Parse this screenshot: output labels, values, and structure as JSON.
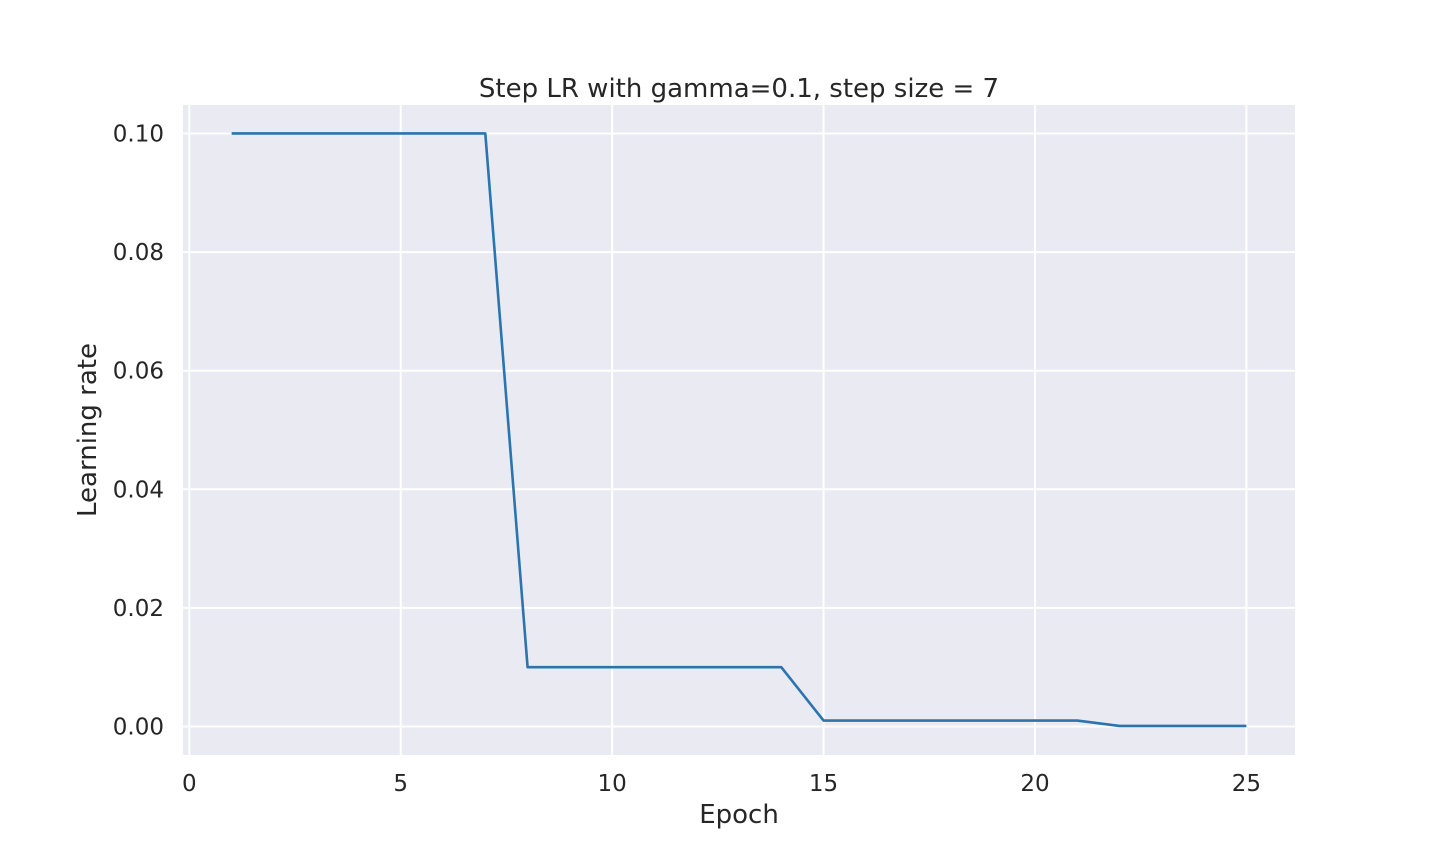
{
  "chart_data": {
    "type": "line",
    "title": "Step LR with gamma=0.1, step size = 7",
    "xlabel": "Epoch",
    "ylabel": "Learning rate",
    "xlim": [
      -0.15,
      26.15
    ],
    "ylim": [
      -0.0048,
      0.1048
    ],
    "xticks": [
      0,
      5,
      10,
      15,
      20,
      25
    ],
    "xtick_labels": [
      "0",
      "5",
      "10",
      "15",
      "20",
      "25"
    ],
    "yticks": [
      0.0,
      0.02,
      0.04,
      0.06,
      0.08,
      0.1
    ],
    "ytick_labels": [
      "0.00",
      "0.02",
      "0.04",
      "0.06",
      "0.08",
      "0.10"
    ],
    "grid": true,
    "background_color": "#eaeaf2",
    "series": [
      {
        "color": "#2a74b0",
        "x": [
          1,
          2,
          3,
          4,
          5,
          6,
          7,
          8,
          9,
          10,
          11,
          12,
          13,
          14,
          15,
          16,
          17,
          18,
          19,
          20,
          21,
          22,
          23,
          24,
          25
        ],
        "y": [
          0.1,
          0.1,
          0.1,
          0.1,
          0.1,
          0.1,
          0.1,
          0.01,
          0.01,
          0.01,
          0.01,
          0.01,
          0.01,
          0.01,
          0.001,
          0.001,
          0.001,
          0.001,
          0.001,
          0.001,
          0.001,
          0.0001,
          0.0001,
          0.0001,
          0.0001
        ]
      }
    ]
  }
}
